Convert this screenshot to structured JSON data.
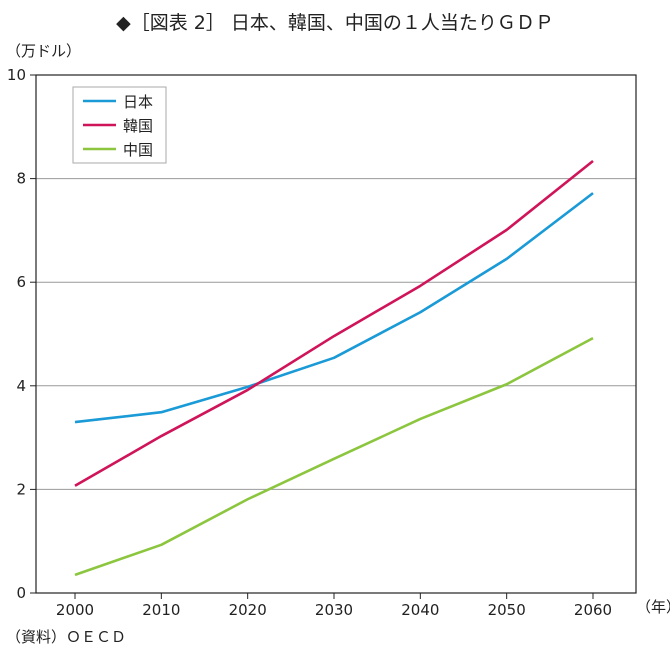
{
  "chart_data": {
    "type": "line",
    "title": "◆［図表 2］ 日本、韓国、中国の１人当たりＧＤＰ",
    "ylabel": "（万ドル）",
    "xlabel": "（年）",
    "source": "（資料）ＯＥＣＤ",
    "x": [
      2000,
      2010,
      2020,
      2030,
      2040,
      2050,
      2060
    ],
    "x_ticks": [
      "2000",
      "2010",
      "2020",
      "2030",
      "2040",
      "2050",
      "2060"
    ],
    "y_ticks": [
      "0",
      "2",
      "4",
      "6",
      "8",
      "10"
    ],
    "ylim": [
      0,
      10
    ],
    "grid": "horizontal",
    "legend_position": "top-left",
    "series": [
      {
        "name": "日本",
        "color": "#1a9ad6",
        "values": [
          3.3,
          3.49,
          3.98,
          4.54,
          5.42,
          6.45,
          7.72
        ]
      },
      {
        "name": "韓国",
        "color": "#d0145a",
        "values": [
          2.07,
          3.03,
          3.92,
          4.96,
          5.93,
          7.01,
          8.34
        ]
      },
      {
        "name": "中国",
        "color": "#8cc63f",
        "values": [
          0.35,
          0.93,
          1.81,
          2.59,
          3.36,
          4.03,
          4.92
        ]
      }
    ]
  }
}
